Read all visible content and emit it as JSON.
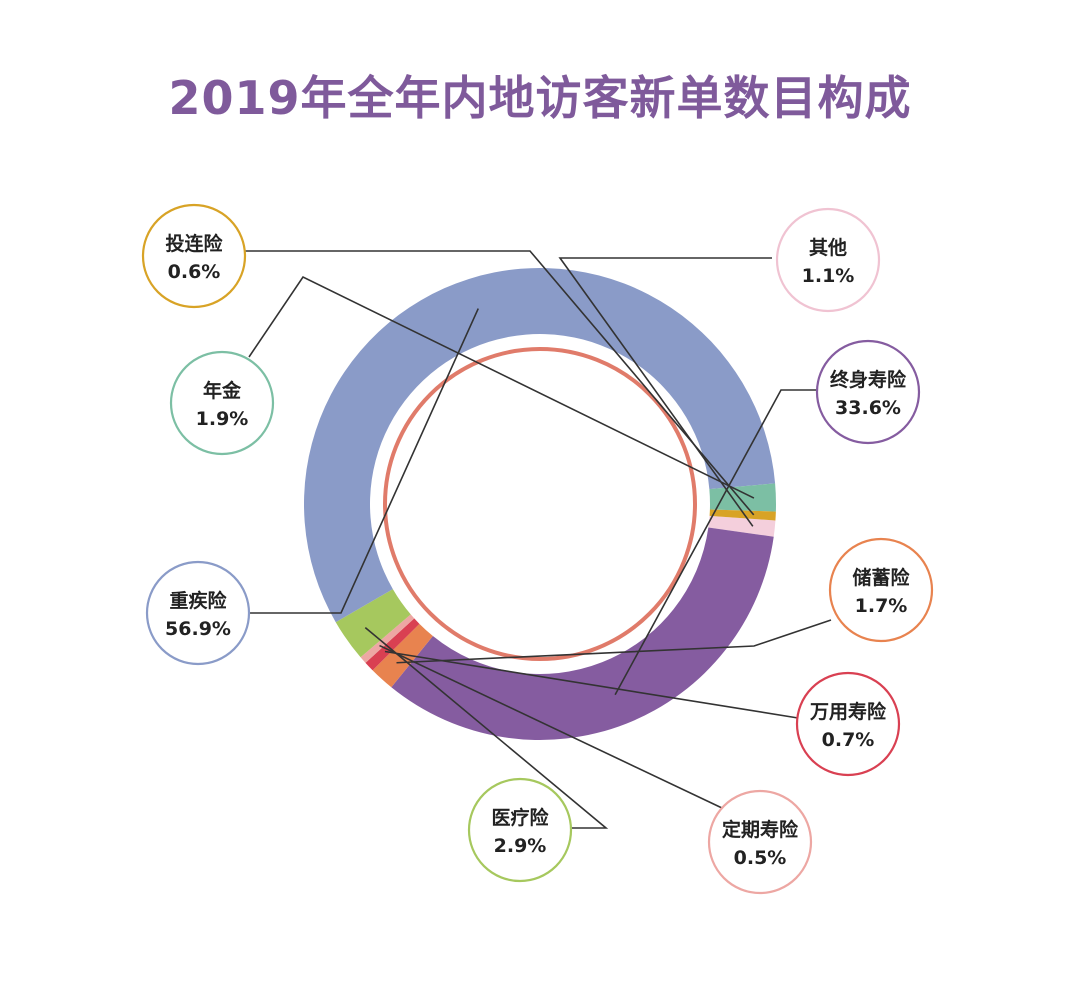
{
  "chart_data": {
    "type": "pie",
    "title": "2019年全年内地访客新单数目构成",
    "slices": [
      {
        "label": "其他",
        "value": 1.1,
        "display": "1.1%",
        "color": "#f4cfdc"
      },
      {
        "label": "终身寿险",
        "value": 33.6,
        "display": "33.6%",
        "color": "#855ca0"
      },
      {
        "label": "储蓄险",
        "value": 1.7,
        "display": "1.7%",
        "color": "#e8834f"
      },
      {
        "label": "万用寿险",
        "value": 0.7,
        "display": "0.7%",
        "color": "#d94052"
      },
      {
        "label": "定期寿险",
        "value": 0.5,
        "display": "0.5%",
        "color": "#eda7a3"
      },
      {
        "label": "医疗险",
        "value": 2.9,
        "display": "2.9%",
        "color": "#a6c85e"
      },
      {
        "label": "重疾险",
        "value": 56.9,
        "display": "56.9%",
        "color": "#8a9bc8"
      },
      {
        "label": "年金",
        "value": 1.9,
        "display": "1.9%",
        "color": "#7cbfa4"
      },
      {
        "label": "投连险",
        "value": 0.6,
        "display": "0.6%",
        "color": "#d8a326"
      }
    ],
    "donut": true,
    "inner_ring_color": "#e07b6a",
    "legend": "callout-circles"
  }
}
